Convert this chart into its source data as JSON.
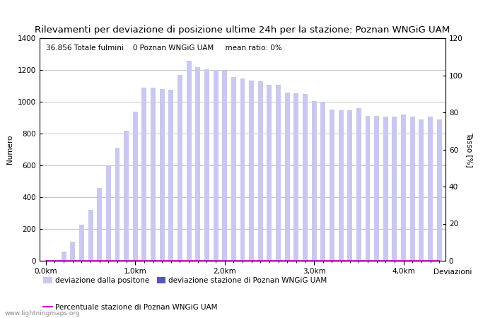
{
  "title": "Rilevamenti per deviazione di posizione ultime 24h per la stazione: Poznan WNGiG UAM",
  "info_text": "36.856 Totale fulmini    0 Poznan WNGiG UAM     mean ratio: 0%",
  "xlabel": "Deviazioni",
  "ylabel_left": "Numero",
  "ylabel_right": "Tasso [%]",
  "watermark": "www.lightningmaps.org",
  "bar_color_light": "#c8c8f0",
  "bar_color_dark": "#5555bb",
  "line_color": "#cc00cc",
  "ylim_left": [
    0,
    1400
  ],
  "ylim_right": [
    0,
    120
  ],
  "yticks_left": [
    0,
    200,
    400,
    600,
    800,
    1000,
    1200,
    1400
  ],
  "yticks_right": [
    0,
    20,
    40,
    60,
    80,
    100,
    120
  ],
  "xtick_labels": [
    "0,0km",
    "1,0km",
    "2,0km",
    "3,0km",
    "4,0km"
  ],
  "xtick_positions": [
    0,
    10,
    20,
    30,
    40
  ],
  "bar_values": [
    0,
    0,
    60,
    120,
    225,
    320,
    460,
    600,
    710,
    820,
    940,
    1090,
    1090,
    1080,
    1075,
    1170,
    1260,
    1220,
    1205,
    1200,
    1195,
    1155,
    1145,
    1135,
    1130,
    1105,
    1105,
    1060,
    1055,
    1050,
    1005,
    1000,
    950,
    945,
    945,
    960,
    910,
    910,
    905,
    905,
    920,
    905,
    890,
    905,
    890
  ],
  "station_values": [
    0,
    0,
    0,
    0,
    0,
    0,
    0,
    0,
    0,
    0,
    0,
    0,
    0,
    0,
    0,
    0,
    0,
    0,
    0,
    0,
    0,
    0,
    0,
    0,
    0,
    0,
    0,
    0,
    0,
    0,
    0,
    0,
    0,
    0,
    0,
    0,
    0,
    0,
    0,
    0,
    0,
    0,
    0,
    0,
    0
  ],
  "ratio_values": [
    0,
    0,
    0,
    0,
    0,
    0,
    0,
    0,
    0,
    0,
    0,
    0,
    0,
    0,
    0,
    0,
    0,
    0,
    0,
    0,
    0,
    0,
    0,
    0,
    0,
    0,
    0,
    0,
    0,
    0,
    0,
    0,
    0,
    0,
    0,
    0,
    0,
    0,
    0,
    0,
    0,
    0,
    0,
    0,
    0
  ],
  "legend_light_label": "deviazione dalla positone",
  "legend_dark_label": "deviazione stazione di Poznan WNGiG UAM",
  "legend_line_label": "Percentuale stazione di Poznan WNGiG UAM",
  "background_color": "#ffffff",
  "grid_color": "#bbbbbb",
  "title_fontsize": 9.5,
  "label_fontsize": 7.5,
  "tick_fontsize": 7.5,
  "info_fontsize": 7.5
}
